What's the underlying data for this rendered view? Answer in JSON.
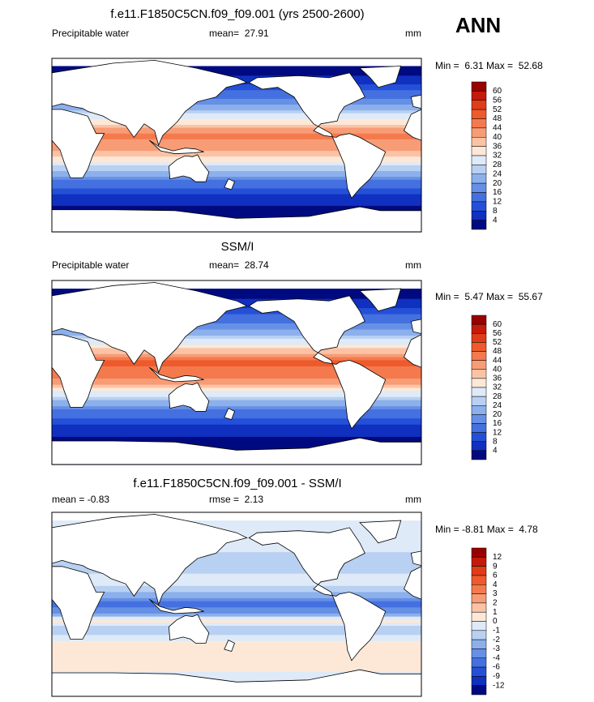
{
  "title": "ANN",
  "panels": [
    {
      "title": "f.e11.F1850C5CN.f09_f09.001 (yrs 2500-2600)",
      "left_label": "Precipitable water",
      "center_label": "mean=  27.91",
      "units": "mm",
      "min_max": "Min =  6.31 Max =  52.68",
      "levels": [
        60,
        56,
        52,
        48,
        44,
        40,
        36,
        32,
        28,
        24,
        20,
        16,
        12,
        8,
        4
      ],
      "colors": [
        "#990000",
        "#c41a0a",
        "#e03c18",
        "#ee5a2c",
        "#f47a4e",
        "#f89c76",
        "#fbc3a5",
        "#fde8d8",
        "#deeaf8",
        "#b8d0f2",
        "#8cb0ec",
        "#6690e6",
        "#4470e0",
        "#2450d8",
        "#1030c0",
        "#000a80"
      ]
    },
    {
      "title": "SSM/I",
      "left_label": "Precipitable water",
      "center_label": "mean=  28.74",
      "units": "mm",
      "min_max": "Min =  5.47 Max =  55.67",
      "levels": [
        60,
        56,
        52,
        48,
        44,
        40,
        36,
        32,
        28,
        24,
        20,
        16,
        12,
        8,
        4
      ],
      "colors": [
        "#990000",
        "#c41a0a",
        "#e03c18",
        "#ee5a2c",
        "#f47a4e",
        "#f89c76",
        "#fbc3a5",
        "#fde8d8",
        "#deeaf8",
        "#b8d0f2",
        "#8cb0ec",
        "#6690e6",
        "#4470e0",
        "#2450d8",
        "#1030c0",
        "#000a80"
      ]
    },
    {
      "title": "f.e11.F1850C5CN.f09_f09.001 - SSM/I",
      "left_label": "mean = -0.83",
      "center_label": "rmse =  2.13",
      "units": "mm",
      "min_max": "Min = -8.81 Max =  4.78",
      "levels": [
        12,
        9,
        6,
        4,
        3,
        2,
        1,
        0,
        -1,
        -2,
        -3,
        -4,
        -6,
        -9,
        -12
      ],
      "colors": [
        "#990000",
        "#c41a0a",
        "#e03c18",
        "#ee5a2c",
        "#f47a4e",
        "#f89c76",
        "#fbc3a5",
        "#fde8d8",
        "#deeaf8",
        "#b8d0f2",
        "#8cb0ec",
        "#6690e6",
        "#4470e0",
        "#2450d8",
        "#1030c0",
        "#000a80"
      ]
    }
  ]
}
